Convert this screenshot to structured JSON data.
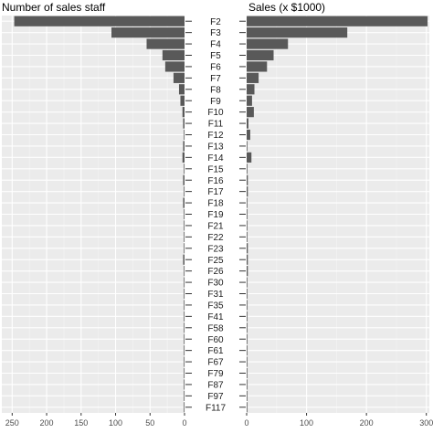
{
  "chart_data": {
    "type": "bar",
    "layout": "back-to-back horizontal bars",
    "categories": [
      "F2",
      "F3",
      "F4",
      "F5",
      "F6",
      "F7",
      "F8",
      "F9",
      "F10",
      "F11",
      "F12",
      "F13",
      "F14",
      "F15",
      "F16",
      "F17",
      "F18",
      "F19",
      "F21",
      "F22",
      "F23",
      "F25",
      "F26",
      "F30",
      "F31",
      "F35",
      "F41",
      "F58",
      "F60",
      "F61",
      "F67",
      "F79",
      "F87",
      "F97",
      "F117"
    ],
    "series": [
      {
        "name": "Number of sales staff",
        "side": "left",
        "values": [
          247,
          106,
          55,
          32,
          28,
          16,
          8,
          6,
          3,
          2,
          1,
          2,
          3,
          1,
          2,
          1,
          2,
          1,
          1,
          1,
          1,
          2,
          1,
          1,
          1,
          1,
          1,
          1,
          1,
          1,
          1,
          1,
          1,
          1,
          1
        ],
        "xlim": [
          265,
          0
        ],
        "ticks": [
          "250",
          "200",
          "150",
          "100",
          "50",
          "0"
        ],
        "tick_values": [
          250,
          200,
          150,
          100,
          50,
          0
        ]
      },
      {
        "name": "Sales (x $1000)",
        "side": "right",
        "values": [
          302,
          168,
          69,
          45,
          34,
          20,
          13,
          9,
          12,
          3,
          6,
          1,
          8,
          0.5,
          2,
          2,
          0.5,
          1,
          1,
          0.5,
          2,
          2,
          2,
          0.5,
          1,
          0.5,
          1,
          0.5,
          0.5,
          1,
          0.5,
          1,
          1,
          0.5,
          0.5
        ],
        "xlim": [
          0,
          305
        ],
        "ticks": [
          "0",
          "100",
          "200",
          "300"
        ],
        "tick_values": [
          0,
          100,
          200,
          300
        ]
      }
    ],
    "grid": true,
    "panel_background": "#ebebeb",
    "bar_color": "#595959"
  }
}
